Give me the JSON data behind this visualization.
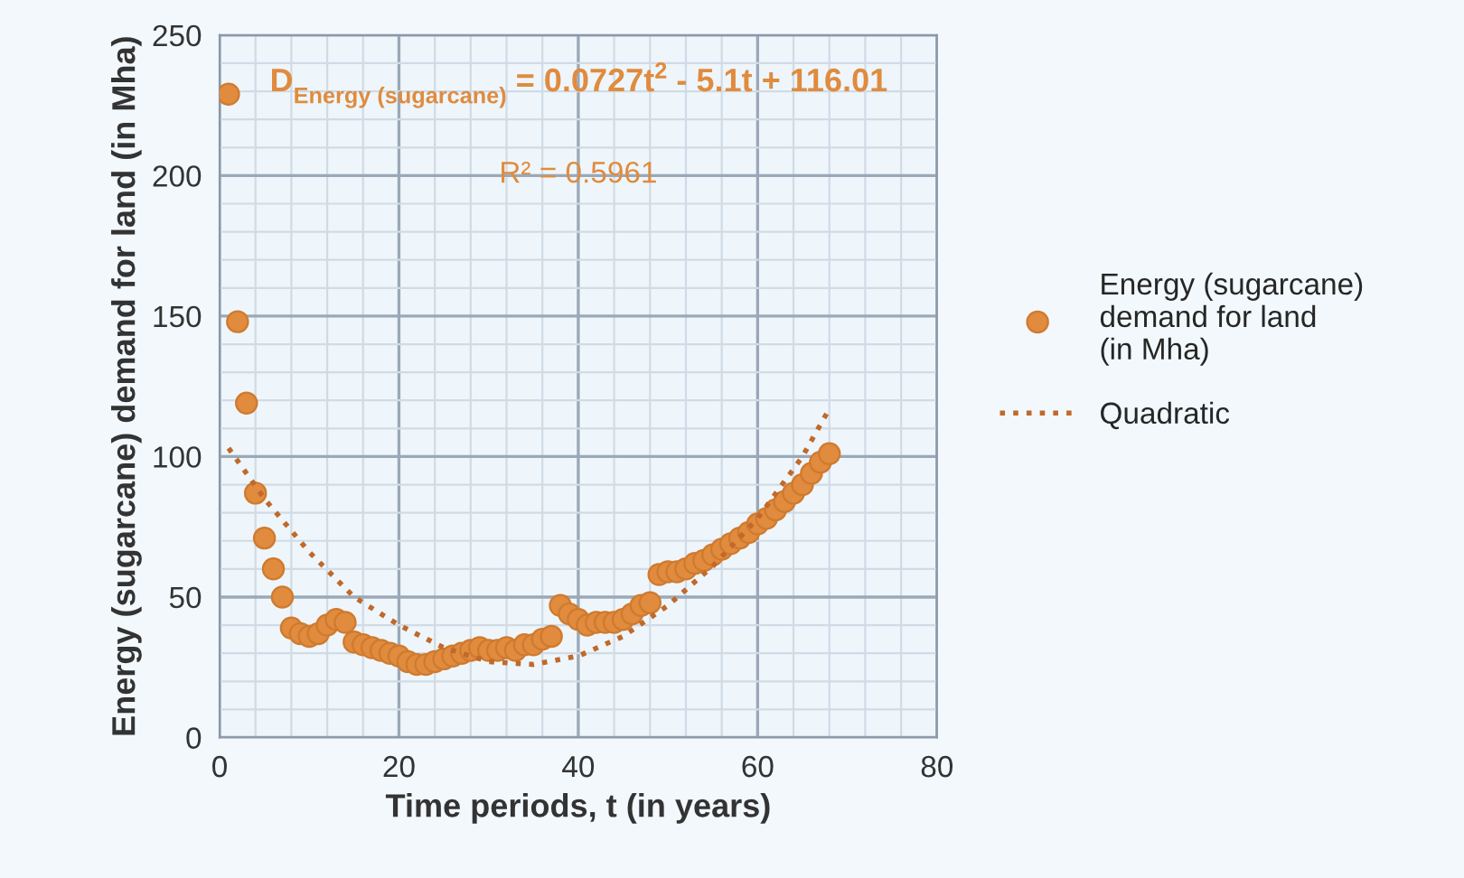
{
  "chart_data": {
    "type": "scatter",
    "xlabel": "Time periods, t (in years)",
    "ylabel": "Energy (sugarcane) demand for land (in Mha)",
    "xlim": [
      0,
      80
    ],
    "xticks": [
      0,
      20,
      40,
      60,
      80
    ],
    "ylim": [
      0,
      250
    ],
    "yticks": [
      0,
      50,
      100,
      150,
      200,
      250
    ],
    "grid": true,
    "legend": "right",
    "annotations": [
      "D$_{Energy (sugarcane)}$ = 0.0727t$^{2}$ - 5.1t + 116.01",
      "R² = 0.5961"
    ],
    "series": [
      {
        "name": "Energy (sugarcane) demand for land (in Mha)",
        "marker": "circle",
        "color": "#e08b3e",
        "x": [
          1,
          2,
          3,
          4,
          5,
          6,
          7,
          8,
          9,
          10,
          11,
          12,
          13,
          14,
          15,
          16,
          17,
          18,
          19,
          20,
          21,
          22,
          23,
          24,
          25,
          26,
          27,
          28,
          29,
          30,
          31,
          32,
          33,
          34,
          35,
          36,
          37,
          38,
          39,
          40,
          41,
          42,
          43,
          44,
          45,
          46,
          47,
          48,
          49,
          50,
          51,
          52,
          53,
          54,
          55,
          56,
          57,
          58,
          59,
          60,
          61,
          62,
          63,
          64,
          65,
          66,
          67,
          68
        ],
        "values": [
          229,
          148,
          119,
          87,
          71,
          60,
          50,
          39,
          37,
          36,
          37,
          40,
          42,
          41,
          34,
          33,
          32,
          31,
          30,
          29,
          27,
          26,
          26,
          27,
          28,
          29,
          30,
          31,
          32,
          31,
          31,
          32,
          31,
          33,
          33,
          35,
          36,
          47,
          44,
          42,
          40,
          41,
          41,
          41,
          42,
          44,
          47,
          48,
          58,
          59,
          59,
          60,
          62,
          63,
          65,
          67,
          69,
          71,
          73,
          76,
          78,
          81,
          84,
          87,
          90,
          94,
          98,
          101
        ]
      },
      {
        "name": "Quadratic",
        "type": "line",
        "marker": "none",
        "line_style": "dotted",
        "color": "#c0692a",
        "x": [
          1,
          5,
          10,
          15,
          20,
          25,
          30,
          35,
          40,
          45,
          50,
          55,
          60,
          65,
          68
        ],
        "values": [
          103,
          85,
          66,
          50,
          40,
          32,
          27,
          26,
          29,
          36,
          47,
          61,
          78,
          100,
          117
        ]
      }
    ]
  }
}
